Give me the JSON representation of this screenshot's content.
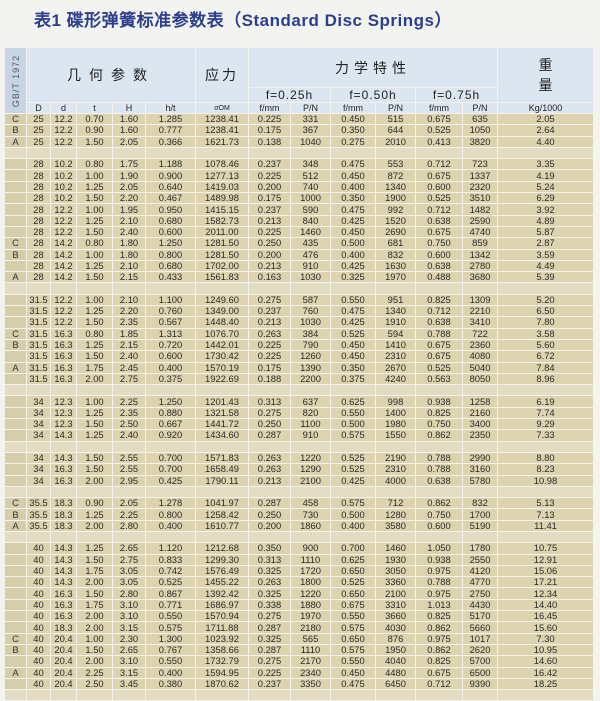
{
  "title": "表1 碟形弹簧标准参数表（Standard Disc Springs）",
  "header": {
    "standard": "GB/T 1972",
    "geometry": "几何参数",
    "stress": "应力",
    "mechanics": "力学特性",
    "weight": "重量",
    "deflections": [
      "f=0.25h",
      "f=0.50h",
      "f=0.75h"
    ],
    "columns": [
      "D",
      "d",
      "t",
      "H",
      "h/t",
      "σOM",
      "f/mm",
      "P/N",
      "f/mm",
      "P/N",
      "f/mm",
      "P/N",
      "Kg/1000"
    ]
  },
  "rows": [
    [
      "C",
      "25",
      "12.2",
      "0.70",
      "1.60",
      "1.285",
      "1238.41",
      "0.225",
      "331",
      "0.450",
      "515",
      "0.675",
      "635",
      "2.05"
    ],
    [
      "B",
      "25",
      "12.2",
      "0.90",
      "1.60",
      "0.777",
      "1238.41",
      "0.175",
      "367",
      "0.350",
      "644",
      "0.525",
      "1050",
      "2.64"
    ],
    [
      "A",
      "25",
      "12.2",
      "1.50",
      "2.05",
      "0.366",
      "1621.73",
      "0.138",
      "1040",
      "0.275",
      "2010",
      "0.413",
      "3820",
      "4.40"
    ],
    null,
    [
      "",
      "28",
      "10.2",
      "0.80",
      "1.75",
      "1.188",
      "1078.46",
      "0.237",
      "348",
      "0.475",
      "553",
      "0.712",
      "723",
      "3.35"
    ],
    [
      "",
      "28",
      "10.2",
      "1.00",
      "1.90",
      "0.900",
      "1277.13",
      "0.225",
      "512",
      "0.450",
      "872",
      "0.675",
      "1337",
      "4.19"
    ],
    [
      "",
      "28",
      "10.2",
      "1.25",
      "2.05",
      "0.640",
      "1419.03",
      "0.200",
      "740",
      "0.400",
      "1340",
      "0.600",
      "2320",
      "5.24"
    ],
    [
      "",
      "28",
      "10.2",
      "1.50",
      "2.20",
      "0.467",
      "1489.98",
      "0.175",
      "1000",
      "0.350",
      "1900",
      "0.525",
      "3510",
      "6.29"
    ],
    [
      "",
      "28",
      "12.2",
      "1.00",
      "1.95",
      "0.950",
      "1415.15",
      "0.237",
      "590",
      "0.475",
      "992",
      "0.712",
      "1482",
      "3.92"
    ],
    [
      "",
      "28",
      "12.2",
      "1.25",
      "2.10",
      "0.680",
      "1582.73",
      "0.213",
      "840",
      "0.425",
      "1520",
      "0.638",
      "2590",
      "4.89"
    ],
    [
      "",
      "28",
      "12.2",
      "1.50",
      "2.40",
      "0.600",
      "2011.00",
      "0.225",
      "1460",
      "0.450",
      "2690",
      "0.675",
      "4740",
      "5.87"
    ],
    [
      "C",
      "28",
      "14.2",
      "0.80",
      "1.80",
      "1.250",
      "1281.50",
      "0.250",
      "435",
      "0.500",
      "681",
      "0.750",
      "859",
      "2.87"
    ],
    [
      "B",
      "28",
      "14.2",
      "1.00",
      "1.80",
      "0.800",
      "1281.50",
      "0.200",
      "476",
      "0.400",
      "832",
      "0.600",
      "1342",
      "3.59"
    ],
    [
      "",
      "28",
      "14.2",
      "1.25",
      "2.10",
      "0.680",
      "1702.00",
      "0.213",
      "910",
      "0.425",
      "1630",
      "0.638",
      "2780",
      "4.49"
    ],
    [
      "A",
      "28",
      "14.2",
      "1.50",
      "2.15",
      "0.433",
      "1561.83",
      "0.163",
      "1030",
      "0.325",
      "1970",
      "0.488",
      "3680",
      "5.39"
    ],
    null,
    [
      "",
      "31.5",
      "12.2",
      "1.00",
      "2.10",
      "1.100",
      "1249.60",
      "0.275",
      "587",
      "0.550",
      "951",
      "0.825",
      "1309",
      "5.20"
    ],
    [
      "",
      "31.5",
      "12.2",
      "1.25",
      "2.20",
      "0.760",
      "1349.00",
      "0.237",
      "760",
      "0.475",
      "1340",
      "0.712",
      "2210",
      "6.50"
    ],
    [
      "",
      "31.5",
      "12.2",
      "1.50",
      "2.35",
      "0.567",
      "1448.40",
      "0.213",
      "1030",
      "0.425",
      "1910",
      "0.638",
      "3410",
      "7.80"
    ],
    [
      "C",
      "31.5",
      "16.3",
      "0.80",
      "1.85",
      "1.313",
      "1076.70",
      "0.263",
      "384",
      "0.525",
      "594",
      "0.788",
      "722",
      "3.58"
    ],
    [
      "B",
      "31.5",
      "16.3",
      "1.25",
      "2.15",
      "0.720",
      "1442.01",
      "0.225",
      "790",
      "0.450",
      "1410",
      "0.675",
      "2360",
      "5.60"
    ],
    [
      "",
      "31.5",
      "16.3",
      "1.50",
      "2.40",
      "0.600",
      "1730.42",
      "0.225",
      "1260",
      "0.450",
      "2310",
      "0.675",
      "4080",
      "6.72"
    ],
    [
      "A",
      "31.5",
      "16.3",
      "1.75",
      "2.45",
      "0.400",
      "1570.19",
      "0.175",
      "1390",
      "0.350",
      "2670",
      "0.525",
      "5040",
      "7.84"
    ],
    [
      "",
      "31.5",
      "16.3",
      "2.00",
      "2.75",
      "0.375",
      "1922.69",
      "0.188",
      "2200",
      "0.375",
      "4240",
      "0.563",
      "8050",
      "8.96"
    ],
    null,
    [
      "",
      "34",
      "12.3",
      "1.00",
      "2.25",
      "1.250",
      "1201.43",
      "0.313",
      "637",
      "0.625",
      "998",
      "0.938",
      "1258",
      "6.19"
    ],
    [
      "",
      "34",
      "12.3",
      "1.25",
      "2.35",
      "0.880",
      "1321.58",
      "0.275",
      "820",
      "0.550",
      "1400",
      "0.825",
      "2160",
      "7.74"
    ],
    [
      "",
      "34",
      "12.3",
      "1.50",
      "2.50",
      "0.667",
      "1441.72",
      "0.250",
      "1100",
      "0.500",
      "1980",
      "0.750",
      "3400",
      "9.29"
    ],
    [
      "",
      "34",
      "14.3",
      "1.25",
      "2.40",
      "0.920",
      "1434.60",
      "0.287",
      "910",
      "0.575",
      "1550",
      "0.862",
      "2350",
      "7.33"
    ],
    null,
    [
      "",
      "34",
      "14.3",
      "1.50",
      "2.55",
      "0.700",
      "1571.83",
      "0.263",
      "1220",
      "0.525",
      "2190",
      "0.788",
      "2990",
      "8.80"
    ],
    [
      "",
      "34",
      "16.3",
      "1.50",
      "2.55",
      "0.700",
      "1658.49",
      "0.263",
      "1290",
      "0.525",
      "2310",
      "0.788",
      "3160",
      "8.23"
    ],
    [
      "",
      "34",
      "16.3",
      "2.00",
      "2.95",
      "0.425",
      "1790.11",
      "0.213",
      "2100",
      "0.425",
      "4000",
      "0.638",
      "5780",
      "10.98"
    ],
    null,
    [
      "C",
      "35.5",
      "18.3",
      "0.90",
      "2.05",
      "1.278",
      "1041.97",
      "0.287",
      "458",
      "0.575",
      "712",
      "0.862",
      "832",
      "5.13"
    ],
    [
      "B",
      "35.5",
      "18.3",
      "1.25",
      "2.25",
      "0.800",
      "1258.42",
      "0.250",
      "730",
      "0.500",
      "1280",
      "0.750",
      "1700",
      "7.13"
    ],
    [
      "A",
      "35.5",
      "18.3",
      "2.00",
      "2.80",
      "0.400",
      "1610.77",
      "0.200",
      "1860",
      "0.400",
      "3580",
      "0.600",
      "5190",
      "11.41"
    ],
    null,
    [
      "",
      "40",
      "14.3",
      "1.25",
      "2.65",
      "1.120",
      "1212.68",
      "0.350",
      "900",
      "0.700",
      "1460",
      "1.050",
      "1780",
      "10.75"
    ],
    [
      "",
      "40",
      "14.3",
      "1.50",
      "2.75",
      "0.833",
      "1299.30",
      "0.313",
      "1110",
      "0.625",
      "1930",
      "0.938",
      "2550",
      "12.91"
    ],
    [
      "",
      "40",
      "14.3",
      "1.75",
      "3.05",
      "0.742",
      "1576.49",
      "0.325",
      "1720",
      "0.650",
      "3050",
      "0.975",
      "4120",
      "15.06"
    ],
    [
      "",
      "40",
      "14.3",
      "2.00",
      "3.05",
      "0.525",
      "1455.22",
      "0.263",
      "1800",
      "0.525",
      "3360",
      "0.788",
      "4770",
      "17.21"
    ],
    [
      "",
      "40",
      "16.3",
      "1.50",
      "2.80",
      "0.867",
      "1392.42",
      "0.325",
      "1220",
      "0.650",
      "2100",
      "0.975",
      "2750",
      "12.34"
    ],
    [
      "",
      "40",
      "16.3",
      "1.75",
      "3.10",
      "0.771",
      "1686.97",
      "0.338",
      "1880",
      "0.675",
      "3310",
      "1.013",
      "4430",
      "14.40"
    ],
    [
      "",
      "40",
      "16.3",
      "2.00",
      "3.10",
      "0.550",
      "1570.94",
      "0.275",
      "1970",
      "0.550",
      "3660",
      "0.825",
      "5170",
      "16.45"
    ],
    [
      "",
      "40",
      "18.3",
      "2.00",
      "3.15",
      "0.575",
      "1711.88",
      "0.287",
      "2180",
      "0.575",
      "4030",
      "0.862",
      "5660",
      "15.60"
    ],
    [
      "C",
      "40",
      "20.4",
      "1.00",
      "2.30",
      "1.300",
      "1023.92",
      "0.325",
      "565",
      "0.650",
      "876",
      "0.975",
      "1017",
      "7.30"
    ],
    [
      "B",
      "40",
      "20.4",
      "1.50",
      "2.65",
      "0.767",
      "1358.66",
      "0.287",
      "1110",
      "0.575",
      "1950",
      "0.862",
      "2620",
      "10.95"
    ],
    [
      "",
      "40",
      "20.4",
      "2.00",
      "3.10",
      "0.550",
      "1732.79",
      "0.275",
      "2170",
      "0.550",
      "4040",
      "0.825",
      "5700",
      "14.60"
    ],
    [
      "A",
      "40",
      "20.4",
      "2.25",
      "3.15",
      "0.400",
      "1594.95",
      "0.225",
      "2340",
      "0.450",
      "4480",
      "0.675",
      "6500",
      "16.42"
    ],
    [
      "",
      "40",
      "20.4",
      "2.50",
      "3.45",
      "0.380",
      "1870.62",
      "0.237",
      "3350",
      "0.475",
      "6450",
      "0.712",
      "9390",
      "18.25"
    ],
    null
  ]
}
